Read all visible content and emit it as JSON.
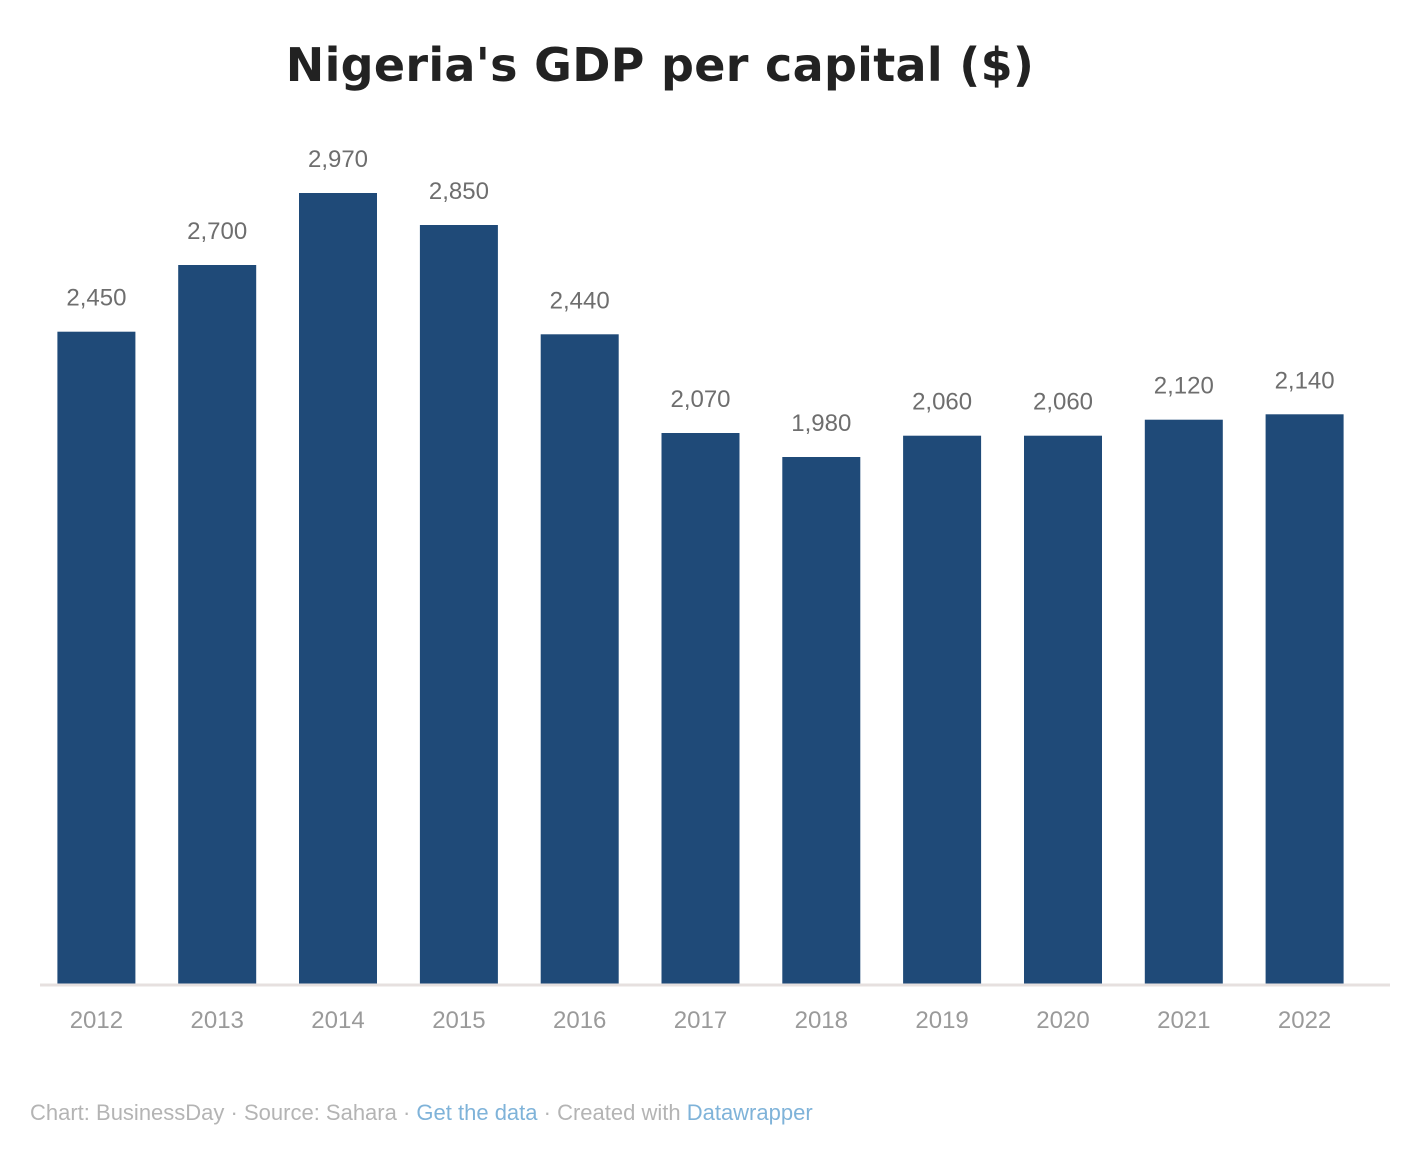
{
  "chart_data": {
    "type": "bar",
    "title": "Nigeria's GDP per capital  ($)",
    "categories": [
      "2012",
      "2013",
      "2014",
      "2015",
      "2016",
      "2017",
      "2018",
      "2019",
      "2020",
      "2021",
      "2022"
    ],
    "values": [
      2450,
      2700,
      2970,
      2850,
      2440,
      2070,
      1980,
      2060,
      2060,
      2120,
      2140
    ],
    "value_labels": [
      "2,450",
      "2,700",
      "2,970",
      "2,850",
      "2,440",
      "2,070",
      "1,980",
      "2,060",
      "2,060",
      "2,120",
      "2,140"
    ],
    "xlabel": "",
    "ylabel": "",
    "ylim": [
      0,
      2970
    ],
    "grid": false,
    "legend": "none",
    "bar_color": "#1f4a78",
    "axis_color": "#e6e0df"
  },
  "footer": {
    "chart_credit": "Chart: BusinessDay",
    "separator_1": " · ",
    "source": "Source: Sahara",
    "separator_2": " · ",
    "get_data_link": "Get the data",
    "separator_3": " · ",
    "created_with": "Created with ",
    "datawrapper_link": "Datawrapper"
  },
  "colors": {
    "link": "#7fb3d9",
    "muted_text": "#b4b4b4"
  }
}
